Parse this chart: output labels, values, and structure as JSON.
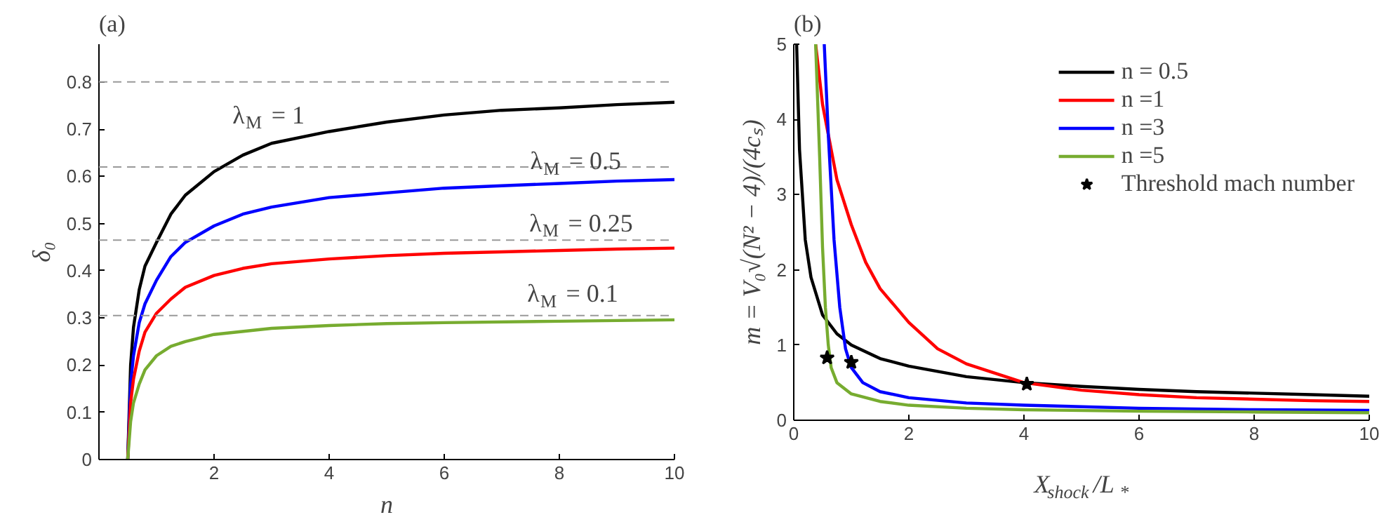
{
  "chart_data": [
    {
      "type": "line",
      "title": "(a)",
      "xlabel": "n",
      "ylabel": "δ₀",
      "xlim": [
        0,
        10
      ],
      "ylim": [
        0,
        0.88
      ],
      "xticks": [
        2,
        4,
        6,
        8,
        10
      ],
      "yticks": [
        0,
        0.1,
        0.2,
        0.3,
        0.4,
        0.5,
        0.6,
        0.7,
        0.8
      ],
      "grid": false,
      "legend": false,
      "line_style": "solid",
      "series": [
        {
          "color": "#000000",
          "x": [
            0.5,
            0.55,
            0.6,
            0.7,
            0.8,
            1,
            1.25,
            1.5,
            2,
            2.5,
            3,
            4,
            5,
            6,
            7,
            8,
            9,
            10
          ],
          "values": [
            0,
            0.2,
            0.28,
            0.36,
            0.41,
            0.46,
            0.52,
            0.56,
            0.61,
            0.645,
            0.67,
            0.695,
            0.715,
            0.73,
            0.74,
            0.745,
            0.752,
            0.757
          ]
        },
        {
          "color": "#0000ff",
          "x": [
            0.5,
            0.55,
            0.6,
            0.7,
            0.8,
            1,
            1.25,
            1.5,
            2,
            2.5,
            3,
            4,
            5,
            6,
            7,
            8,
            9,
            10
          ],
          "values": [
            0,
            0.16,
            0.22,
            0.29,
            0.33,
            0.38,
            0.43,
            0.46,
            0.495,
            0.52,
            0.535,
            0.555,
            0.565,
            0.575,
            0.58,
            0.585,
            0.59,
            0.593
          ]
        },
        {
          "color": "#ff0000",
          "x": [
            0.5,
            0.55,
            0.6,
            0.7,
            0.8,
            1,
            1.25,
            1.5,
            2,
            2.5,
            3,
            4,
            5,
            6,
            7,
            8,
            9,
            10
          ],
          "values": [
            0,
            0.12,
            0.17,
            0.23,
            0.27,
            0.31,
            0.34,
            0.365,
            0.39,
            0.405,
            0.415,
            0.425,
            0.432,
            0.437,
            0.44,
            0.443,
            0.446,
            0.448
          ]
        },
        {
          "color": "#77ac30",
          "x": [
            0.5,
            0.55,
            0.6,
            0.7,
            0.8,
            1,
            1.25,
            1.5,
            2,
            3,
            4,
            5,
            6,
            8,
            10
          ],
          "values": [
            0,
            0.08,
            0.12,
            0.16,
            0.19,
            0.22,
            0.24,
            0.25,
            0.265,
            0.278,
            0.284,
            0.288,
            0.29,
            0.293,
            0.296
          ]
        }
      ],
      "ref_lines": [
        {
          "axis": "y",
          "value": 0.8,
          "color": "#999999",
          "line_style": "dashed"
        },
        {
          "axis": "y",
          "value": 0.62,
          "color": "#999999",
          "line_style": "dashed"
        },
        {
          "axis": "y",
          "value": 0.465,
          "color": "#999999",
          "line_style": "dashed"
        },
        {
          "axis": "y",
          "value": 0.305,
          "color": "#999999",
          "line_style": "dashed"
        }
      ],
      "annotations": [
        "λ$_{M}$ = 1",
        "λ$_{M}$ = 0.5",
        "λ$_{M}$ = 0.25",
        "λ$_{M}$ = 0.1"
      ]
    },
    {
      "type": "line",
      "title": "(b)",
      "xlabel": "X$_{shock}$/L$_{*}$",
      "ylabel": "m = V₀√(N² − 4)/(4cₛ)",
      "xlim": [
        0,
        10
      ],
      "ylim": [
        0,
        5
      ],
      "xticks": [
        0,
        2,
        4,
        6,
        8,
        10
      ],
      "yticks": [
        0,
        1,
        2,
        3,
        4,
        5
      ],
      "grid": false,
      "legend": "top right",
      "line_style": "solid",
      "series": [
        {
          "name": "n = 0.5",
          "color": "#000000",
          "x": [
            0.05,
            0.1,
            0.2,
            0.3,
            0.5,
            0.75,
            1,
            1.5,
            2,
            3,
            4,
            5,
            6,
            7,
            8,
            9,
            10
          ],
          "values": [
            5,
            3.6,
            2.4,
            1.9,
            1.4,
            1.15,
            1.0,
            0.82,
            0.72,
            0.58,
            0.5,
            0.45,
            0.41,
            0.38,
            0.36,
            0.34,
            0.32
          ]
        },
        {
          "name": "n =1",
          "color": "#ff0000",
          "x": [
            0.38,
            0.5,
            0.75,
            1,
            1.25,
            1.5,
            2,
            2.5,
            3,
            4,
            5,
            6,
            7,
            8,
            9,
            10
          ],
          "values": [
            5,
            4.2,
            3.2,
            2.6,
            2.1,
            1.75,
            1.3,
            0.95,
            0.75,
            0.5,
            0.4,
            0.34,
            0.3,
            0.28,
            0.26,
            0.25
          ]
        },
        {
          "name": "n =3",
          "color": "#0000ff",
          "x": [
            0.53,
            0.6,
            0.7,
            0.8,
            0.9,
            1,
            1.2,
            1.5,
            2,
            3,
            4,
            6,
            8,
            10
          ],
          "values": [
            5,
            3.8,
            2.4,
            1.5,
            0.95,
            0.7,
            0.5,
            0.38,
            0.3,
            0.23,
            0.2,
            0.16,
            0.14,
            0.13
          ]
        },
        {
          "name": "n =5",
          "color": "#77ac30",
          "x": [
            0.38,
            0.45,
            0.5,
            0.55,
            0.6,
            0.65,
            0.75,
            1,
            1.5,
            2,
            3,
            4,
            6,
            8,
            10
          ],
          "values": [
            5,
            3.5,
            2.3,
            1.5,
            1.0,
            0.7,
            0.5,
            0.35,
            0.25,
            0.2,
            0.16,
            0.14,
            0.12,
            0.11,
            0.1
          ]
        },
        {
          "name": "Threshold mach number",
          "type": "scatter",
          "marker": "star",
          "color": "#000000",
          "x": [
            0.58,
            1.0,
            4.05
          ],
          "values": [
            0.83,
            0.77,
            0.48
          ]
        }
      ]
    }
  ]
}
